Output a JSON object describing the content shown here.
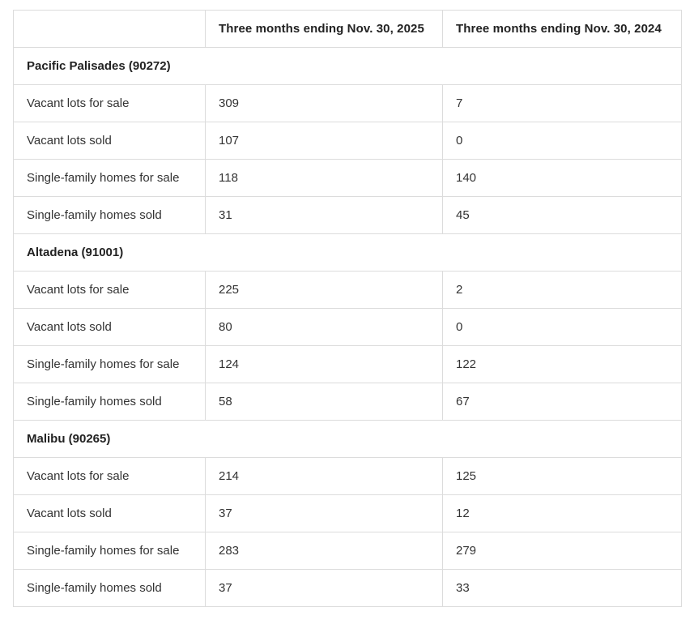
{
  "chart_data": {
    "type": "table",
    "title": "",
    "columns": [
      "",
      "Three months ending Nov. 30, 2025",
      "Three months ending Nov. 30, 2024"
    ],
    "sections": [
      {
        "title": "Pacific Palisades (90272)",
        "rows": [
          {
            "label": "Vacant lots for sale",
            "values": [
              "309",
              "7"
            ]
          },
          {
            "label": "Vacant lots sold",
            "values": [
              "107",
              "0"
            ]
          },
          {
            "label": "Single-family homes for sale",
            "values": [
              "118",
              "140"
            ]
          },
          {
            "label": "Single-family homes sold",
            "values": [
              "31",
              "45"
            ]
          }
        ]
      },
      {
        "title": "Altadena (91001)",
        "rows": [
          {
            "label": "Vacant lots for sale",
            "values": [
              "225",
              "2"
            ]
          },
          {
            "label": "Vacant lots sold",
            "values": [
              "80",
              "0"
            ]
          },
          {
            "label": "Single-family homes for sale",
            "values": [
              "124",
              "122"
            ]
          },
          {
            "label": "Single-family homes sold",
            "values": [
              "58",
              "67"
            ]
          }
        ]
      },
      {
        "title": "Malibu (90265)",
        "rows": [
          {
            "label": "Vacant lots for sale",
            "values": [
              "214",
              "125"
            ]
          },
          {
            "label": "Vacant lots sold",
            "values": [
              "37",
              "12"
            ]
          },
          {
            "label": "Single-family homes for sale",
            "values": [
              "283",
              "279"
            ]
          },
          {
            "label": "Single-family homes sold",
            "values": [
              "37",
              "33"
            ]
          }
        ]
      }
    ],
    "layout": {
      "grid": "full-borders",
      "header_row": true,
      "section_rows_span_all_columns": true
    }
  },
  "colors": {
    "border": "#dcdcdc",
    "header_text": "#222222",
    "body_text": "#333333",
    "background": "#ffffff"
  }
}
